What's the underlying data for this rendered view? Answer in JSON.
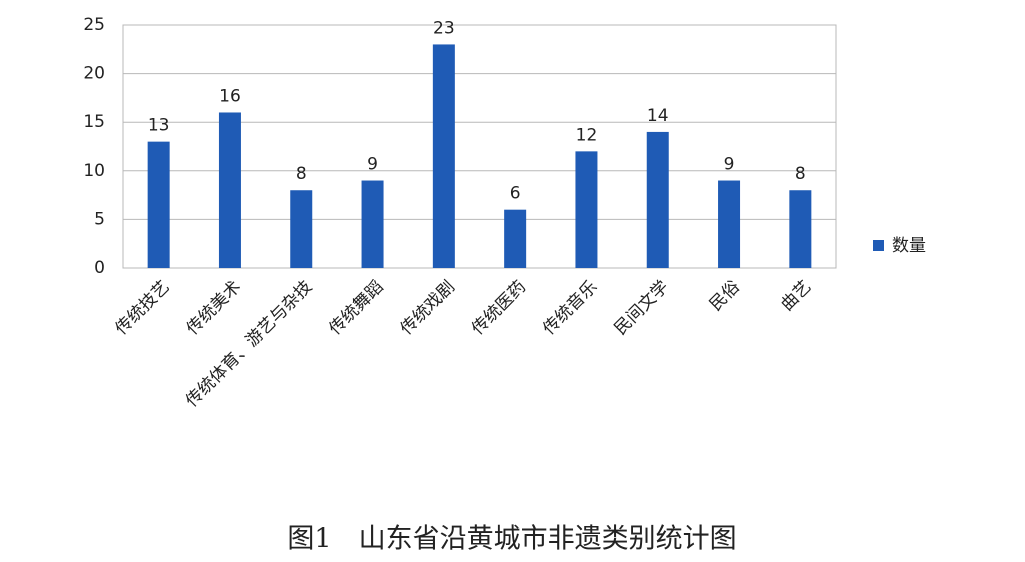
{
  "chart_data": {
    "type": "bar",
    "caption": "图1　山东省沿黄城市非遗类别统计图",
    "categories": [
      "传统技艺",
      "传统美术",
      "传统体育、游艺与杂技",
      "传统舞蹈",
      "传统戏剧",
      "传统医药",
      "传统音乐",
      "民间文学",
      "民俗",
      "曲艺"
    ],
    "series": [
      {
        "name": "数量",
        "color": "#1f5bb5",
        "values": [
          13,
          16,
          8,
          9,
          23,
          6,
          12,
          14,
          9,
          8
        ]
      }
    ],
    "ylim": [
      0,
      25
    ],
    "yticks": [
      0,
      5,
      10,
      15,
      20,
      25
    ],
    "grid": true,
    "legend": "right"
  }
}
